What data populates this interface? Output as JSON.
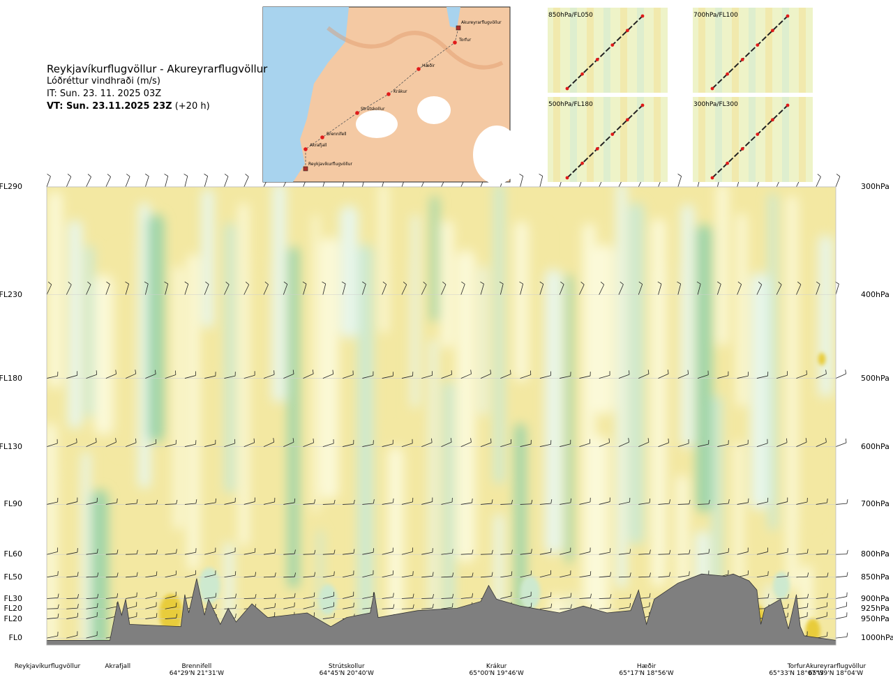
{
  "header": {
    "route": "Reykjavíkurflugvöllur - Akureyrarflugvöllur",
    "variable": "Lóðréttur vindhraði (m/s)",
    "issue_time": "IT: Sun. 23. 11. 2025 03Z",
    "valid_time_bold": "VT: Sun. 23.11.2025 23Z",
    "valid_time_lead": "(+20 h)"
  },
  "map": {
    "places": [
      "Akureyrarflugvöllur",
      "Torfur",
      "Hæðir",
      "Krákur",
      "Strútskollur",
      "Brennifell",
      "Akrafjall",
      "Reykjavíkurflugvöllur"
    ]
  },
  "mini_maps": [
    {
      "label": "850hPa/FL050"
    },
    {
      "label": "700hPa/FL100"
    },
    {
      "label": "500hPa/FL180"
    },
    {
      "label": "300hPa/FL300"
    }
  ],
  "chart_data": {
    "type": "heatmap",
    "title": "Reykjavíkurflugvöllur - Akureyrarflugvöllur",
    "variable": "Lóðréttur vindhraði (m/s)",
    "levels": [
      {
        "fl": "FL290",
        "hpa": "300hPa",
        "p": 300
      },
      {
        "fl": "FL230",
        "hpa": "400hPa",
        "p": 400
      },
      {
        "fl": "FL180",
        "hpa": "500hPa",
        "p": 500
      },
      {
        "fl": "FL130",
        "hpa": "600hPa",
        "p": 600
      },
      {
        "fl": "FL90",
        "hpa": "700hPa",
        "p": 700
      },
      {
        "fl": "FL60",
        "hpa": "800hPa",
        "p": 800
      },
      {
        "fl": "FL50",
        "hpa": "850hPa",
        "p": 850
      },
      {
        "fl": "FL30",
        "hpa": "900hPa",
        "p": 900
      },
      {
        "fl": "FL20",
        "hpa": "925hPa",
        "p": 925
      },
      {
        "fl": "FL20",
        "hpa": "950hPa",
        "p": 950
      },
      {
        "fl": "FL0",
        "hpa": "1000hPa",
        "p": 1000
      }
    ],
    "locations": [
      {
        "name": "Reykjavíkurflugvöllur",
        "coord": "",
        "pos": 0.0
      },
      {
        "name": "Akrafjall",
        "coord": "",
        "pos": 0.09
      },
      {
        "name": "Brennifell",
        "coord": "64°29'N 21°31'W",
        "pos": 0.19
      },
      {
        "name": "Strútskollur",
        "coord": "64°45'N 20°40'W",
        "pos": 0.38
      },
      {
        "name": "Krákur",
        "coord": "65°00'N 19°46'W",
        "pos": 0.57
      },
      {
        "name": "Hæðir",
        "coord": "65°17'N 18°56'W",
        "pos": 0.76
      },
      {
        "name": "Torfur",
        "coord": "65°33'N 18°07'W",
        "pos": 0.95
      },
      {
        "name": "Akureyrarflugvöllur",
        "coord": "65°39'N 18°04'W",
        "pos": 1.0
      }
    ],
    "colors": {
      "strong_up": "#e8cc3a",
      "up": "#f3e8a2",
      "weak_up": "#fbf9d8",
      "weak_down": "#e8f6ea",
      "down": "#cde9cf",
      "strong_down": "#9ed4a8",
      "terrain": "#7f7f7f"
    }
  }
}
